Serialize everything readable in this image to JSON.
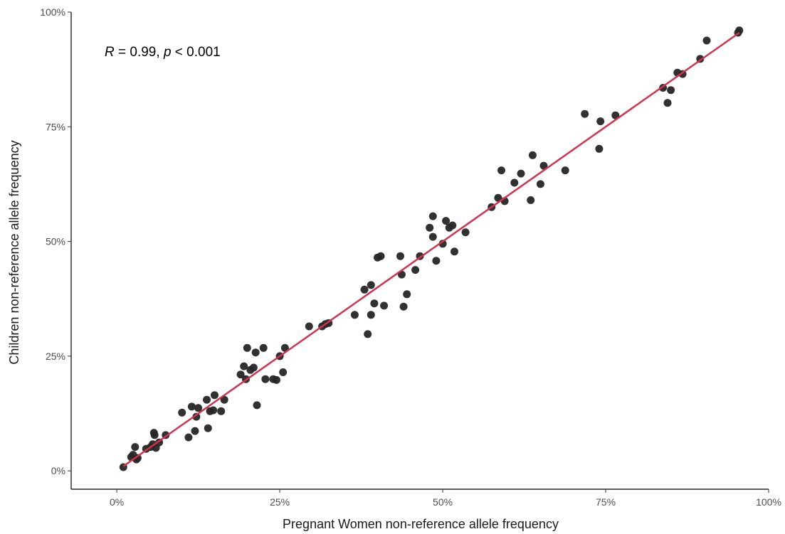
{
  "chart_data": {
    "type": "scatter",
    "title": "",
    "xlabel": "Pregnant Women non-reference allele frequency",
    "ylabel": "Children non-reference allele frequency",
    "xlim": [
      -0.07,
      1.0
    ],
    "ylim": [
      -0.04,
      1.0
    ],
    "x_ticks": [
      0,
      0.25,
      0.5,
      0.75,
      1.0
    ],
    "x_tick_labels": [
      "0%",
      "25%",
      "50%",
      "75%",
      "100%"
    ],
    "y_ticks": [
      0,
      0.25,
      0.5,
      0.75,
      1.0
    ],
    "y_tick_labels": [
      "0%",
      "25%",
      "50%",
      "75%",
      "100%"
    ],
    "grid": false,
    "annotation": {
      "r_symbol": "R",
      "r_text": " = 0.99, ",
      "p_symbol": "p",
      "p_text": " < 0.001"
    },
    "trend_line": {
      "color": "#d1334f",
      "x": [
        0.01,
        0.955
      ],
      "y": [
        0.01,
        0.955
      ]
    },
    "point_color": "#262626",
    "points": [
      [
        0.01,
        0.008
      ],
      [
        0.022,
        0.03
      ],
      [
        0.025,
        0.035
      ],
      [
        0.028,
        0.052
      ],
      [
        0.03,
        0.025
      ],
      [
        0.032,
        0.028
      ],
      [
        0.045,
        0.048
      ],
      [
        0.052,
        0.052
      ],
      [
        0.055,
        0.058
      ],
      [
        0.057,
        0.083
      ],
      [
        0.058,
        0.078
      ],
      [
        0.06,
        0.05
      ],
      [
        0.065,
        0.062
      ],
      [
        0.075,
        0.078
      ],
      [
        0.1,
        0.127
      ],
      [
        0.11,
        0.073
      ],
      [
        0.115,
        0.14
      ],
      [
        0.12,
        0.087
      ],
      [
        0.122,
        0.118
      ],
      [
        0.125,
        0.137
      ],
      [
        0.138,
        0.155
      ],
      [
        0.14,
        0.093
      ],
      [
        0.143,
        0.13
      ],
      [
        0.148,
        0.132
      ],
      [
        0.15,
        0.165
      ],
      [
        0.16,
        0.13
      ],
      [
        0.165,
        0.155
      ],
      [
        0.19,
        0.21
      ],
      [
        0.195,
        0.228
      ],
      [
        0.198,
        0.2
      ],
      [
        0.2,
        0.268
      ],
      [
        0.205,
        0.22
      ],
      [
        0.21,
        0.225
      ],
      [
        0.213,
        0.258
      ],
      [
        0.215,
        0.143
      ],
      [
        0.225,
        0.268
      ],
      [
        0.228,
        0.2
      ],
      [
        0.24,
        0.2
      ],
      [
        0.245,
        0.198
      ],
      [
        0.25,
        0.25
      ],
      [
        0.255,
        0.215
      ],
      [
        0.258,
        0.268
      ],
      [
        0.295,
        0.315
      ],
      [
        0.315,
        0.315
      ],
      [
        0.32,
        0.32
      ],
      [
        0.325,
        0.322
      ],
      [
        0.365,
        0.34
      ],
      [
        0.38,
        0.395
      ],
      [
        0.385,
        0.298
      ],
      [
        0.39,
        0.405
      ],
      [
        0.39,
        0.34
      ],
      [
        0.395,
        0.365
      ],
      [
        0.4,
        0.465
      ],
      [
        0.405,
        0.468
      ],
      [
        0.41,
        0.36
      ],
      [
        0.435,
        0.468
      ],
      [
        0.437,
        0.428
      ],
      [
        0.44,
        0.358
      ],
      [
        0.445,
        0.385
      ],
      [
        0.458,
        0.438
      ],
      [
        0.465,
        0.468
      ],
      [
        0.48,
        0.53
      ],
      [
        0.485,
        0.555
      ],
      [
        0.485,
        0.51
      ],
      [
        0.49,
        0.458
      ],
      [
        0.5,
        0.495
      ],
      [
        0.505,
        0.545
      ],
      [
        0.51,
        0.53
      ],
      [
        0.515,
        0.535
      ],
      [
        0.518,
        0.478
      ],
      [
        0.535,
        0.52
      ],
      [
        0.575,
        0.575
      ],
      [
        0.585,
        0.595
      ],
      [
        0.59,
        0.655
      ],
      [
        0.595,
        0.588
      ],
      [
        0.61,
        0.628
      ],
      [
        0.62,
        0.648
      ],
      [
        0.635,
        0.59
      ],
      [
        0.638,
        0.688
      ],
      [
        0.65,
        0.625
      ],
      [
        0.655,
        0.665
      ],
      [
        0.688,
        0.655
      ],
      [
        0.718,
        0.778
      ],
      [
        0.74,
        0.702
      ],
      [
        0.742,
        0.762
      ],
      [
        0.765,
        0.775
      ],
      [
        0.838,
        0.835
      ],
      [
        0.845,
        0.802
      ],
      [
        0.85,
        0.83
      ],
      [
        0.86,
        0.868
      ],
      [
        0.868,
        0.865
      ],
      [
        0.895,
        0.898
      ],
      [
        0.905,
        0.938
      ],
      [
        0.953,
        0.955
      ],
      [
        0.955,
        0.96
      ]
    ]
  }
}
